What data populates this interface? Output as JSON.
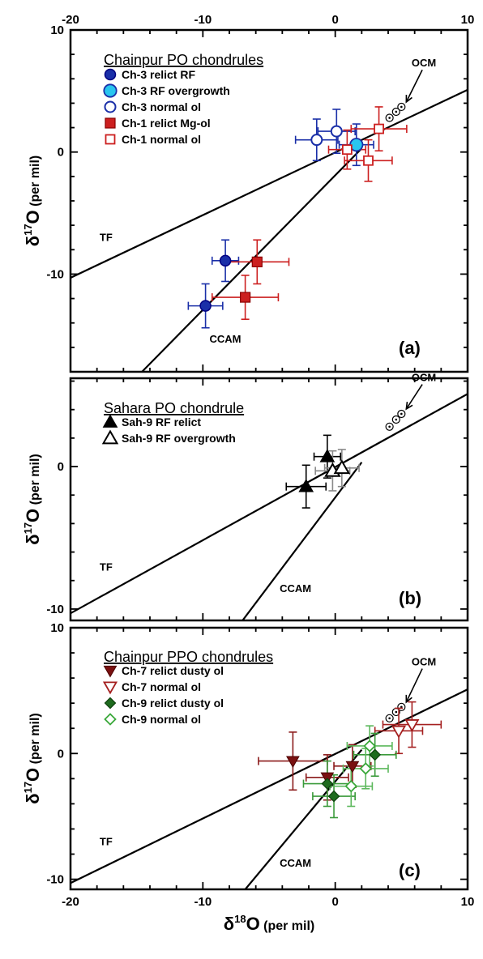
{
  "chart_data": [
    {
      "type": "scatter",
      "panel_label": "(a)",
      "xlim": [
        -20,
        10
      ],
      "ylim": [
        -18,
        10
      ],
      "x_ticks": [
        -20,
        -10,
        0,
        10
      ],
      "y_ticks": [
        -10,
        0,
        10
      ],
      "top_tick_labels": [
        "-20",
        "-10",
        "0",
        "10"
      ],
      "bottom_tick_labels": [],
      "y_tick_labels": [
        "-10",
        "0",
        "10"
      ],
      "ylabel": "δ17O (per mil)",
      "xlabel": "",
      "legend_title": "Chainpur PO chondrules",
      "lines": [
        {
          "name": "TF",
          "x": [
            -20,
            10
          ],
          "y": [
            -10.3,
            5.1
          ],
          "label_at": [
            -17.8,
            -7.3
          ]
        },
        {
          "name": "CCAM",
          "x": [
            -14.6,
            2.0
          ],
          "y": [
            -18,
            0.3
          ],
          "label_at": [
            -9.5,
            -15.6
          ]
        }
      ],
      "ocm": {
        "label": "OCM",
        "points": [
          [
            4.1,
            2.8
          ],
          [
            4.6,
            3.3
          ],
          [
            5.0,
            3.7
          ]
        ],
        "label_at": [
          6.7,
          7.0
        ]
      },
      "series": [
        {
          "name": "Ch-3 relict RF",
          "marker": "circle",
          "fill": "#1a2fa8",
          "stroke": "#000080",
          "err_color": "#1a2fa8",
          "points": [
            [
              -8.3,
              -8.9,
              1.0,
              1.7
            ],
            [
              -9.8,
              -12.6,
              1.3,
              1.8
            ]
          ]
        },
        {
          "name": "Ch-3 RF overgrowth",
          "marker": "circle-large",
          "fill": "#29c6ef",
          "stroke": "#1a2fa8",
          "err_color": "#1a2fa8",
          "points": [
            [
              1.6,
              0.6,
              1.3,
              1.7
            ]
          ]
        },
        {
          "name": "Ch-3 normal ol",
          "marker": "circle-open",
          "fill": "#ffffff",
          "stroke": "#1a2fa8",
          "err_color": "#1a2fa8",
          "points": [
            [
              -1.4,
              1.0,
              1.6,
              1.7
            ],
            [
              0.1,
              1.7,
              1.4,
              1.8
            ]
          ]
        },
        {
          "name": "Ch-1 relict Mg-ol",
          "marker": "square",
          "fill": "#cc1f1f",
          "stroke": "#8a0000",
          "err_color": "#cc1f1f",
          "points": [
            [
              -5.9,
              -9.0,
              2.4,
              1.8
            ],
            [
              -6.8,
              -11.9,
              2.5,
              1.8
            ]
          ]
        },
        {
          "name": "Ch-1 normal ol",
          "marker": "square-open",
          "fill": "#ffffff",
          "stroke": "#cc1f1f",
          "err_color": "#cc1f1f",
          "points": [
            [
              3.3,
              1.9,
              2.1,
              1.8
            ],
            [
              0.9,
              0.2,
              1.4,
              1.6
            ],
            [
              2.5,
              -0.7,
              1.8,
              1.7
            ]
          ]
        }
      ]
    },
    {
      "type": "scatter",
      "panel_label": "(b)",
      "xlim": [
        -20,
        10
      ],
      "ylim": [
        -10.8,
        6.2
      ],
      "x_ticks": [
        -20,
        -10,
        0,
        10
      ],
      "y_ticks": [
        -10,
        0
      ],
      "top_tick_labels": [],
      "bottom_tick_labels": [],
      "y_tick_labels": [
        "-10",
        "0"
      ],
      "ylabel": "δ17O (per mil)",
      "xlabel": "",
      "legend_title": "Sahara PO chondrule",
      "lines": [
        {
          "name": "TF",
          "x": [
            -20,
            10
          ],
          "y": [
            -10.3,
            5.1
          ],
          "label_at": [
            -17.8,
            -7.3
          ]
        },
        {
          "name": "CCAM",
          "x": [
            -7.0,
            2.0
          ],
          "y": [
            -10.8,
            0.3
          ],
          "label_at": [
            -4.2,
            -8.8
          ]
        }
      ],
      "ocm": {
        "label": "OCM",
        "points": [
          [
            4.1,
            2.8
          ],
          [
            4.6,
            3.3
          ],
          [
            5.0,
            3.7
          ]
        ],
        "label_at": [
          6.7,
          6.0
        ]
      },
      "series": [
        {
          "name": "Sah-9 RF relict",
          "marker": "triangle",
          "fill": "#000000",
          "stroke": "#000000",
          "err_color": "#000000",
          "points": [
            [
              -2.2,
              -1.4,
              1.5,
              1.5
            ],
            [
              -0.6,
              0.7,
              1.0,
              1.5
            ]
          ]
        },
        {
          "name": "Sah-9 RF overgrowth",
          "marker": "triangle-open",
          "fill": "#ffffff",
          "stroke": "#000000",
          "err_color": "#888888",
          "points": [
            [
              -0.2,
              -0.3,
              1.3,
              1.4
            ],
            [
              0.5,
              -0.1,
              1.3,
              1.3
            ]
          ]
        }
      ]
    },
    {
      "type": "scatter",
      "panel_label": "(c)",
      "xlim": [
        -20,
        10
      ],
      "ylim": [
        -10.8,
        10
      ],
      "x_ticks": [
        -20,
        -10,
        0,
        10
      ],
      "y_ticks": [
        -10,
        0,
        10
      ],
      "top_tick_labels": [],
      "bottom_tick_labels": [
        "-20",
        "-10",
        "0",
        "10"
      ],
      "y_tick_labels": [
        "-10",
        "0",
        "10"
      ],
      "ylabel": "δ17O (per mil)",
      "xlabel": "δ18O (per mil)",
      "legend_title": "Chainpur PPO chondrules",
      "lines": [
        {
          "name": "TF",
          "x": [
            -20,
            10
          ],
          "y": [
            -10.3,
            5.1
          ],
          "label_at": [
            -17.8,
            -7.3
          ]
        },
        {
          "name": "CCAM",
          "x": [
            -6.8,
            2.0
          ],
          "y": [
            -10.8,
            0.3
          ],
          "label_at": [
            -4.2,
            -9.0
          ]
        }
      ],
      "ocm": {
        "label": "OCM",
        "points": [
          [
            4.1,
            2.8
          ],
          [
            4.6,
            3.3
          ],
          [
            5.0,
            3.7
          ]
        ],
        "label_at": [
          6.7,
          7.0
        ]
      },
      "series": [
        {
          "name": "Ch-7 relict dusty ol",
          "marker": "triangle-down",
          "fill": "#7a1010",
          "stroke": "#4a0000",
          "err_color": "#8b1a1a",
          "points": [
            [
              -3.2,
              -0.6,
              2.6,
              2.3
            ],
            [
              -0.6,
              -1.9,
              1.6,
              1.8
            ],
            [
              1.3,
              -1.0,
              1.4,
              1.7
            ]
          ]
        },
        {
          "name": "Ch-7 normal ol",
          "marker": "triangle-down-open",
          "fill": "#ffffff",
          "stroke": "#a52020",
          "err_color": "#a52020",
          "points": [
            [
              4.8,
              1.8,
              1.8,
              1.8
            ],
            [
              5.8,
              2.3,
              2.2,
              1.8
            ]
          ]
        },
        {
          "name": "Ch-9 relict dusty ol",
          "marker": "diamond",
          "fill": "#1e6b1e",
          "stroke": "#0d400d",
          "err_color": "#3a9a3a",
          "points": [
            [
              -0.6,
              -2.4,
              1.8,
              1.8
            ],
            [
              -0.1,
              -3.4,
              1.6,
              1.7
            ],
            [
              3.0,
              -0.1,
              1.6,
              1.7
            ]
          ]
        },
        {
          "name": "Ch-9 normal ol",
          "marker": "diamond-open",
          "fill": "#ffffff",
          "stroke": "#3aa83a",
          "err_color": "#5cb85c",
          "points": [
            [
              1.2,
              -2.6,
              1.6,
              1.6
            ],
            [
              2.3,
              -1.2,
              1.7,
              1.6
            ],
            [
              2.6,
              0.6,
              1.7,
              1.6
            ]
          ]
        }
      ]
    }
  ]
}
